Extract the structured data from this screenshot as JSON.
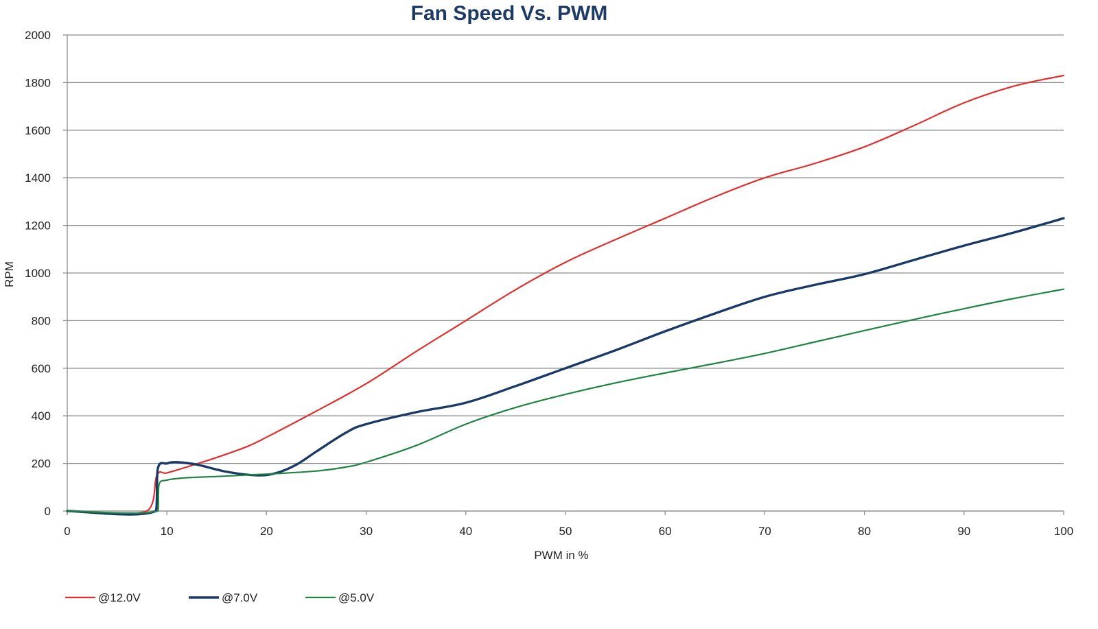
{
  "chart_data": {
    "type": "line",
    "title": "Fan Speed Vs. PWM",
    "xlabel": "PWM in %",
    "ylabel": "RPM",
    "xlim": [
      0,
      100
    ],
    "ylim": [
      0,
      2000
    ],
    "xticks": [
      "0",
      "10",
      "20",
      "30",
      "40",
      "50",
      "60",
      "70",
      "80",
      "90",
      "100"
    ],
    "yticks": [
      "0",
      "200",
      "400",
      "600",
      "800",
      "1000",
      "1200",
      "1400",
      "1600",
      "1800",
      "2000"
    ],
    "grid": true,
    "legend_position": "bottom-left",
    "series": [
      {
        "name": "@12.0V",
        "color": "#e0302e",
        "points": [
          [
            0,
            0
          ],
          [
            8,
            0
          ],
          [
            9,
            150
          ],
          [
            10,
            160
          ],
          [
            12,
            185
          ],
          [
            15,
            225
          ],
          [
            18,
            270
          ],
          [
            20,
            310
          ],
          [
            25,
            420
          ],
          [
            30,
            535
          ],
          [
            35,
            670
          ],
          [
            40,
            800
          ],
          [
            45,
            930
          ],
          [
            50,
            1045
          ],
          [
            55,
            1140
          ],
          [
            60,
            1230
          ],
          [
            65,
            1320
          ],
          [
            70,
            1400
          ],
          [
            75,
            1460
          ],
          [
            80,
            1530
          ],
          [
            85,
            1620
          ],
          [
            90,
            1715
          ],
          [
            95,
            1785
          ],
          [
            100,
            1830
          ]
        ]
      },
      {
        "name": "@7.0V",
        "color": "#1a3966",
        "points": [
          [
            0,
            0
          ],
          [
            8.9,
            0
          ],
          [
            9.1,
            180
          ],
          [
            10,
            200
          ],
          [
            11,
            205
          ],
          [
            13,
            195
          ],
          [
            16,
            165
          ],
          [
            19,
            150
          ],
          [
            21,
            160
          ],
          [
            23,
            195
          ],
          [
            25,
            250
          ],
          [
            28,
            330
          ],
          [
            30,
            365
          ],
          [
            35,
            415
          ],
          [
            40,
            455
          ],
          [
            45,
            525
          ],
          [
            50,
            600
          ],
          [
            55,
            675
          ],
          [
            60,
            755
          ],
          [
            65,
            830
          ],
          [
            70,
            900
          ],
          [
            75,
            950
          ],
          [
            80,
            995
          ],
          [
            85,
            1055
          ],
          [
            90,
            1115
          ],
          [
            95,
            1170
          ],
          [
            100,
            1230
          ]
        ]
      },
      {
        "name": "@5.0V",
        "color": "#1e8540",
        "points": [
          [
            0,
            0
          ],
          [
            9.1,
            0
          ],
          [
            9.2,
            110
          ],
          [
            10,
            130
          ],
          [
            12,
            140
          ],
          [
            15,
            145
          ],
          [
            20,
            155
          ],
          [
            25,
            168
          ],
          [
            28,
            185
          ],
          [
            30,
            205
          ],
          [
            35,
            275
          ],
          [
            40,
            365
          ],
          [
            45,
            435
          ],
          [
            50,
            490
          ],
          [
            55,
            538
          ],
          [
            60,
            580
          ],
          [
            65,
            620
          ],
          [
            70,
            662
          ],
          [
            75,
            710
          ],
          [
            80,
            758
          ],
          [
            85,
            805
          ],
          [
            90,
            850
          ],
          [
            95,
            893
          ],
          [
            100,
            932
          ]
        ]
      }
    ]
  }
}
